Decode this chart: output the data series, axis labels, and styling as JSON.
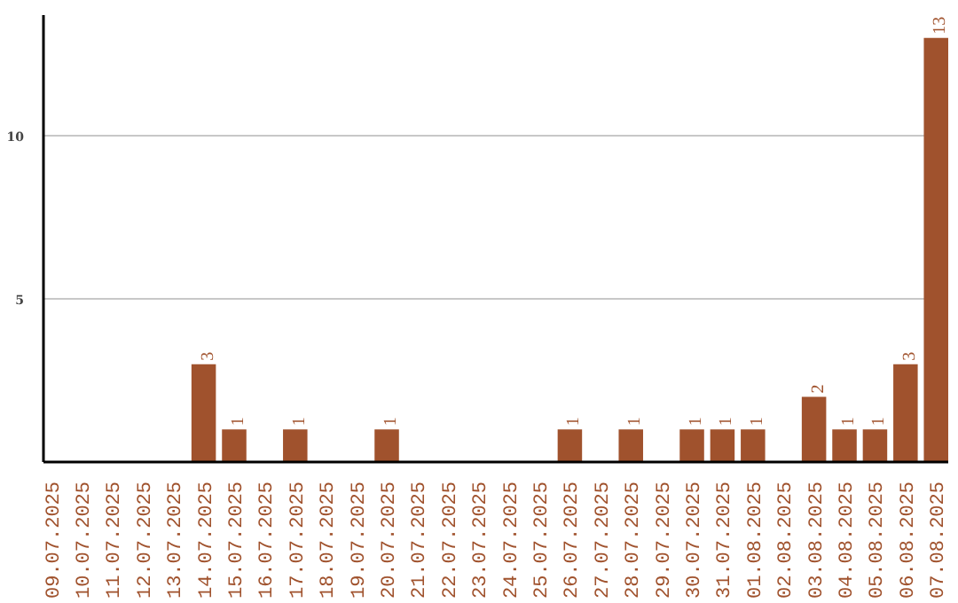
{
  "chart_data": {
    "type": "bar",
    "categories": [
      "09.07.2025",
      "10.07.2025",
      "11.07.2025",
      "12.07.2025",
      "13.07.2025",
      "14.07.2025",
      "15.07.2025",
      "16.07.2025",
      "17.07.2025",
      "18.07.2025",
      "19.07.2025",
      "20.07.2025",
      "21.07.2025",
      "22.07.2025",
      "23.07.2025",
      "24.07.2025",
      "25.07.2025",
      "26.07.2025",
      "27.07.2025",
      "28.07.2025",
      "29.07.2025",
      "30.07.2025",
      "31.07.2025",
      "01.08.2025",
      "02.08.2025",
      "03.08.2025",
      "04.08.2025",
      "05.08.2025",
      "06.08.2025",
      "07.08.2025"
    ],
    "values": [
      0,
      0,
      0,
      0,
      0,
      3,
      1,
      0,
      1,
      0,
      0,
      1,
      0,
      0,
      0,
      0,
      0,
      1,
      0,
      1,
      0,
      1,
      1,
      1,
      0,
      2,
      1,
      1,
      3,
      13
    ],
    "value_labels": [
      null,
      null,
      null,
      null,
      null,
      "3",
      "1",
      null,
      "1",
      null,
      null,
      "1",
      null,
      null,
      null,
      null,
      null,
      "1",
      null,
      "1",
      null,
      "1",
      "1",
      "1",
      null,
      "2",
      "1",
      "1",
      "3",
      "13"
    ],
    "color": "#a0522d",
    "ylim": [
      0,
      13.7
    ],
    "yticks": [
      5,
      10
    ],
    "grid": "y"
  }
}
